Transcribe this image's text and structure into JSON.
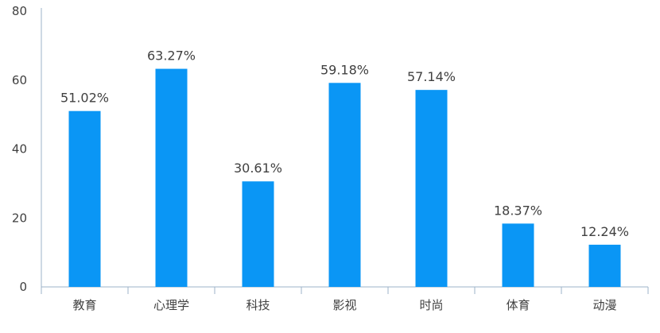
{
  "chart_data": {
    "type": "bar",
    "title": "",
    "xlabel": "",
    "ylabel": "",
    "categories": [
      "教育",
      "心理学",
      "科技",
      "影视",
      "时尚",
      "体育",
      "动漫"
    ],
    "values": [
      51.02,
      63.27,
      30.61,
      59.18,
      57.14,
      18.37,
      12.24
    ],
    "data_labels": [
      "51.02%",
      "63.27%",
      "30.61%",
      "59.18%",
      "57.14%",
      "18.37%",
      "12.24%"
    ],
    "ylim": [
      0,
      80
    ],
    "yticks": [
      0,
      20,
      40,
      60,
      80
    ],
    "grid": false,
    "legend": "none",
    "colors": {
      "bar": "#0A96F5",
      "axis": "#9DB3C8",
      "text": "#404040"
    }
  }
}
